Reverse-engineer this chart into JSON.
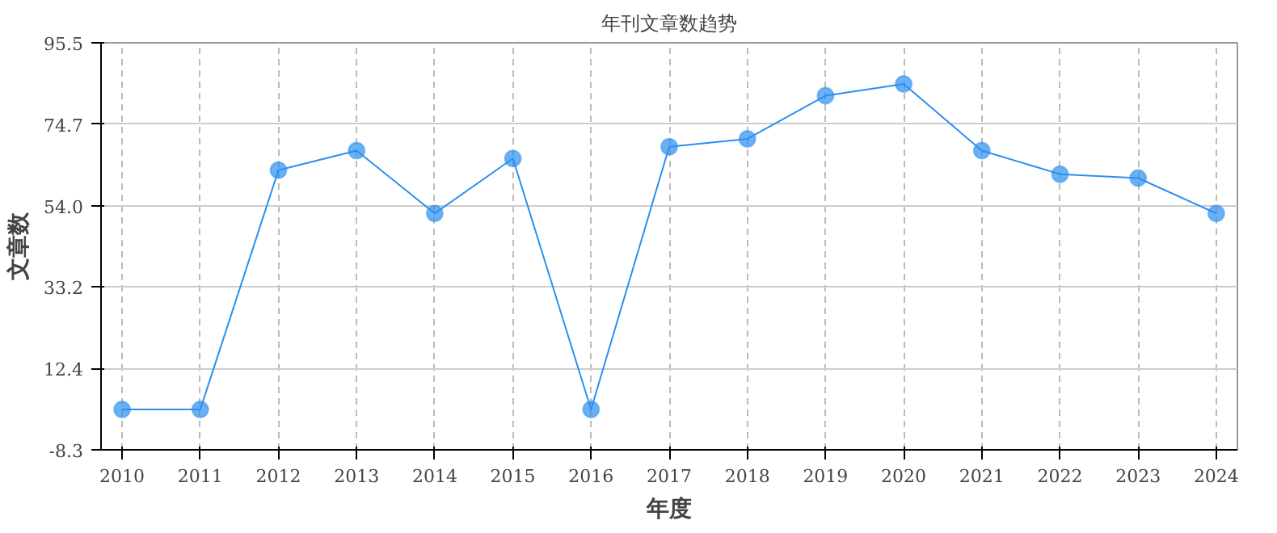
{
  "chart_data": {
    "type": "line",
    "title": "年刊文章数趋势",
    "xlabel": "年度",
    "ylabel": "文章数",
    "categories": [
      "2010",
      "2011",
      "2012",
      "2013",
      "2014",
      "2015",
      "2016",
      "2017",
      "2018",
      "2019",
      "2020",
      "2021",
      "2022",
      "2023",
      "2024"
    ],
    "series": [
      {
        "color": "#2b8ff0",
        "values": [
          2,
          2,
          63,
          68,
          52,
          66,
          2,
          69,
          71,
          82,
          85,
          68,
          62,
          61,
          52
        ]
      }
    ],
    "ylim": [
      -8.3,
      95.5
    ],
    "yticks": [
      -8.3,
      12.4,
      33.2,
      {
        "value": 54,
        "label": "54.0"
      },
      74.7,
      95.5
    ],
    "grid": true,
    "marker": "circle",
    "line_style": "solid"
  }
}
